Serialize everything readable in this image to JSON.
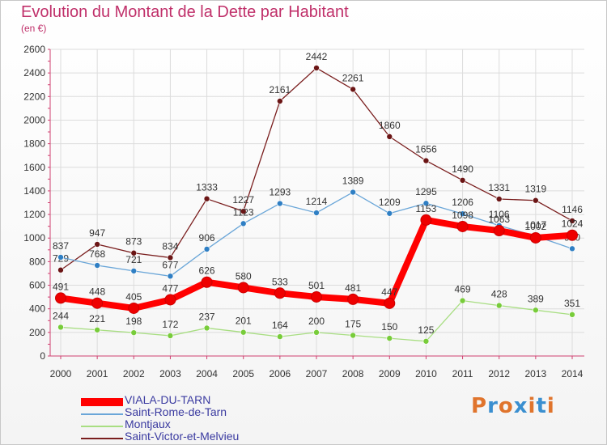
{
  "header": {
    "title": "Evolution du Montant de la Dette par Habitant",
    "subtitle": "(en €)"
  },
  "brand": {
    "text": "Proxiti",
    "colors": [
      "#e0742c",
      "#3a8fd0",
      "#e0742c",
      "#3a8fd0",
      "#e0742c",
      "#3a8fd0",
      "#e0742c"
    ]
  },
  "chart_data": {
    "type": "line",
    "x": [
      "2000",
      "2001",
      "2002",
      "2003",
      "2004",
      "2005",
      "2006",
      "2007",
      "2008",
      "2009",
      "2010",
      "2011",
      "2012",
      "2013",
      "2014"
    ],
    "ylim": [
      0,
      2600
    ],
    "yticks": [
      0,
      200,
      400,
      600,
      800,
      1000,
      1200,
      1400,
      1600,
      1800,
      2000,
      2200,
      2400,
      2600
    ],
    "grid": true,
    "legend_position": "bottom-left",
    "series": [
      {
        "name": "Saint-Victor-et-Melvieu",
        "color": "#7a1e1e",
        "marker": "#6b1515",
        "values": [
          729,
          947,
          873,
          834,
          1333,
          1227,
          2161,
          2442,
          2261,
          1860,
          1656,
          1490,
          1331,
          1319,
          1146
        ]
      },
      {
        "name": "Saint-Rome-de-Tarn",
        "color": "#6aa6d8",
        "marker": "#2f7fc4",
        "values": [
          837,
          768,
          721,
          677,
          906,
          1123,
          1293,
          1214,
          1389,
          1209,
          1295,
          1206,
          1106,
          1017,
          910
        ]
      },
      {
        "name": "Montjaux",
        "color": "#a8de82",
        "marker": "#78cc3a",
        "values": [
          244,
          221,
          198,
          172,
          237,
          201,
          164,
          200,
          175,
          150,
          125,
          469,
          428,
          389,
          351
        ]
      },
      {
        "name": "VIALA-DU-TARN",
        "color": "#ff0000",
        "marker": "#ee0000",
        "values": [
          491,
          448,
          405,
          477,
          626,
          580,
          533,
          501,
          481,
          447,
          1153,
          1098,
          1063,
          1002,
          1024
        ]
      }
    ]
  }
}
